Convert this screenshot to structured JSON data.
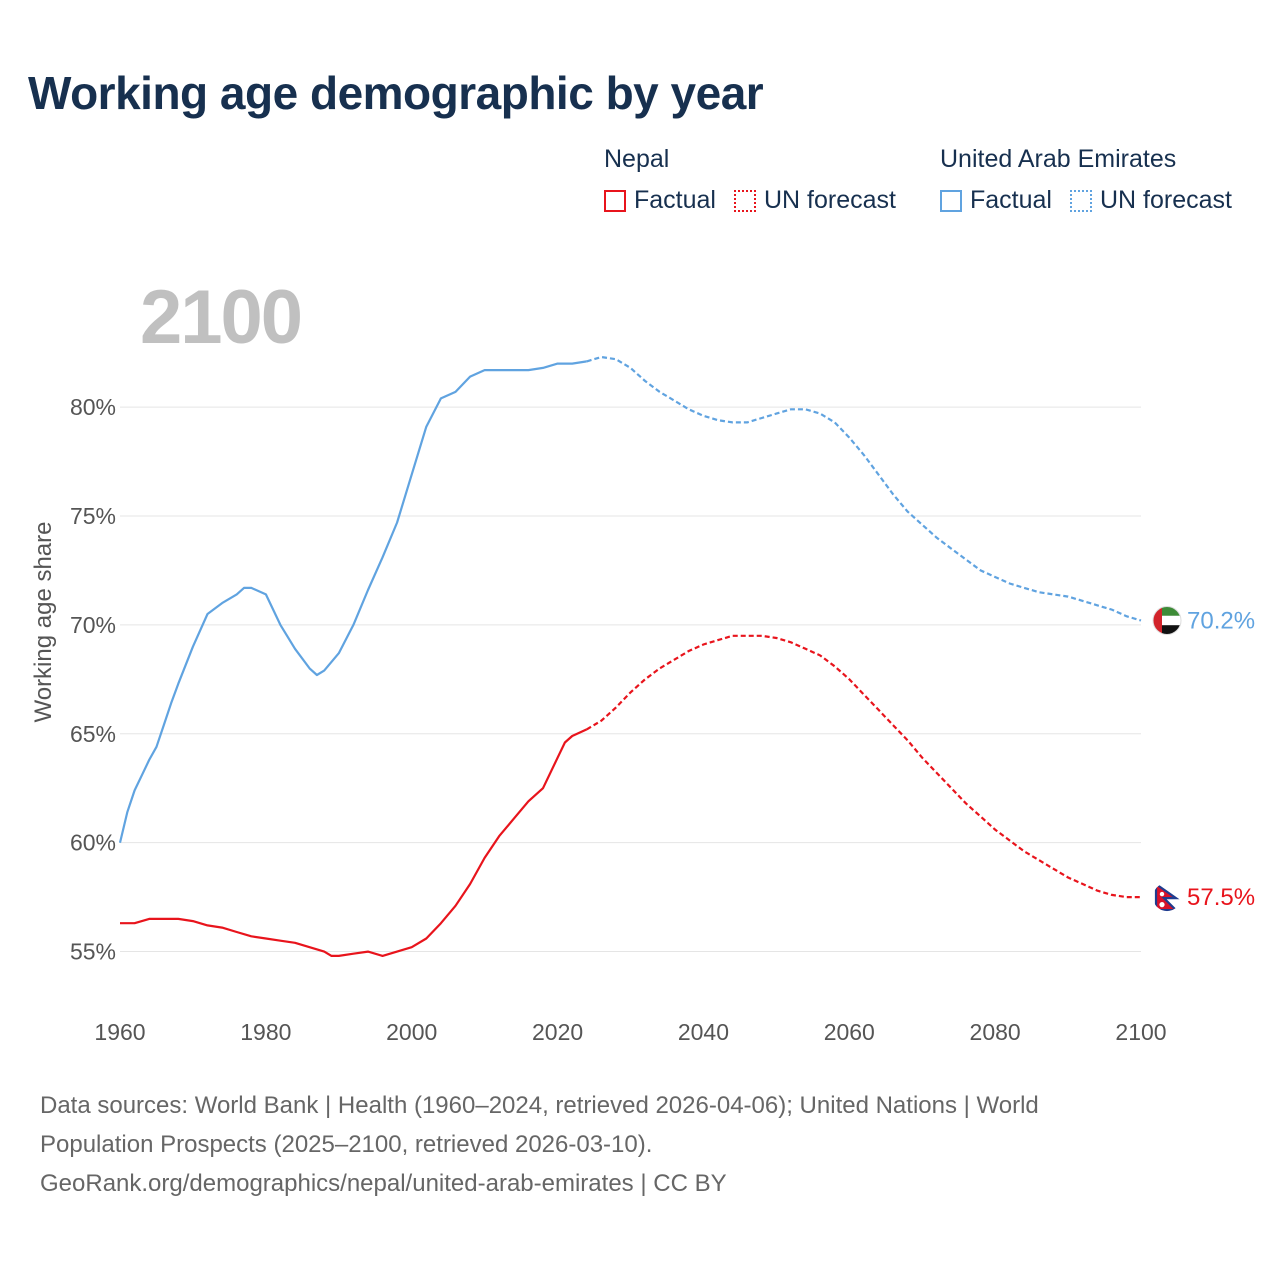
{
  "chart_data": {
    "type": "line",
    "title": "Working age demographic by year",
    "current_year_label": "2100",
    "ylabel": "Working age share",
    "xlabel": "",
    "xlim": [
      1960,
      2100
    ],
    "ylim": [
      52.5,
      84
    ],
    "x_ticks": [
      "1960",
      "1980",
      "2000",
      "2020",
      "2040",
      "2060",
      "2080",
      "2100"
    ],
    "y_ticks": [
      "55%",
      "60%",
      "65%",
      "70%",
      "75%",
      "80%"
    ],
    "y_tick_values": [
      55,
      60,
      65,
      70,
      75,
      80
    ],
    "factual_end_year": 2024,
    "legend": {
      "factual_label": "Factual",
      "forecast_label": "UN forecast"
    },
    "series": [
      {
        "name": "Nepal",
        "color": "#e8141c",
        "end_label": "57.5%",
        "flag": "nepal-flag",
        "points": [
          [
            1960,
            56.3
          ],
          [
            1962,
            56.3
          ],
          [
            1964,
            56.5
          ],
          [
            1966,
            56.5
          ],
          [
            1968,
            56.5
          ],
          [
            1970,
            56.4
          ],
          [
            1972,
            56.2
          ],
          [
            1974,
            56.1
          ],
          [
            1976,
            55.9
          ],
          [
            1978,
            55.7
          ],
          [
            1980,
            55.6
          ],
          [
            1982,
            55.5
          ],
          [
            1984,
            55.4
          ],
          [
            1986,
            55.2
          ],
          [
            1988,
            55.0
          ],
          [
            1989,
            54.8
          ],
          [
            1990,
            54.8
          ],
          [
            1992,
            54.9
          ],
          [
            1994,
            55.0
          ],
          [
            1996,
            54.8
          ],
          [
            1998,
            55.0
          ],
          [
            2000,
            55.2
          ],
          [
            2002,
            55.6
          ],
          [
            2004,
            56.3
          ],
          [
            2006,
            57.1
          ],
          [
            2008,
            58.1
          ],
          [
            2010,
            59.3
          ],
          [
            2012,
            60.3
          ],
          [
            2014,
            61.1
          ],
          [
            2016,
            61.9
          ],
          [
            2018,
            62.5
          ],
          [
            2020,
            63.9
          ],
          [
            2021,
            64.6
          ],
          [
            2022,
            64.9
          ],
          [
            2024,
            65.2
          ],
          [
            2026,
            65.6
          ],
          [
            2028,
            66.2
          ],
          [
            2030,
            66.9
          ],
          [
            2032,
            67.5
          ],
          [
            2034,
            68.0
          ],
          [
            2036,
            68.4
          ],
          [
            2038,
            68.8
          ],
          [
            2040,
            69.1
          ],
          [
            2042,
            69.3
          ],
          [
            2044,
            69.5
          ],
          [
            2046,
            69.5
          ],
          [
            2048,
            69.5
          ],
          [
            2050,
            69.4
          ],
          [
            2052,
            69.2
          ],
          [
            2054,
            68.9
          ],
          [
            2056,
            68.6
          ],
          [
            2058,
            68.1
          ],
          [
            2060,
            67.5
          ],
          [
            2062,
            66.8
          ],
          [
            2064,
            66.1
          ],
          [
            2066,
            65.4
          ],
          [
            2068,
            64.7
          ],
          [
            2070,
            63.9
          ],
          [
            2072,
            63.2
          ],
          [
            2074,
            62.5
          ],
          [
            2076,
            61.8
          ],
          [
            2078,
            61.2
          ],
          [
            2080,
            60.6
          ],
          [
            2082,
            60.1
          ],
          [
            2084,
            59.6
          ],
          [
            2086,
            59.2
          ],
          [
            2088,
            58.8
          ],
          [
            2090,
            58.4
          ],
          [
            2092,
            58.1
          ],
          [
            2094,
            57.8
          ],
          [
            2096,
            57.6
          ],
          [
            2098,
            57.5
          ],
          [
            2100,
            57.5
          ]
        ]
      },
      {
        "name": "United Arab Emirates",
        "color": "#60a3e0",
        "end_label": "70.2%",
        "flag": "uae-flag",
        "points": [
          [
            1960,
            60.0
          ],
          [
            1961,
            61.4
          ],
          [
            1962,
            62.4
          ],
          [
            1963,
            63.1
          ],
          [
            1964,
            63.8
          ],
          [
            1965,
            64.4
          ],
          [
            1966,
            65.4
          ],
          [
            1967,
            66.4
          ],
          [
            1968,
            67.3
          ],
          [
            1970,
            69.0
          ],
          [
            1972,
            70.5
          ],
          [
            1974,
            71.0
          ],
          [
            1976,
            71.4
          ],
          [
            1977,
            71.7
          ],
          [
            1978,
            71.7
          ],
          [
            1980,
            71.4
          ],
          [
            1982,
            70.0
          ],
          [
            1984,
            68.9
          ],
          [
            1986,
            68.0
          ],
          [
            1987,
            67.7
          ],
          [
            1988,
            67.9
          ],
          [
            1990,
            68.7
          ],
          [
            1992,
            70.0
          ],
          [
            1994,
            71.6
          ],
          [
            1996,
            73.1
          ],
          [
            1998,
            74.7
          ],
          [
            2000,
            76.9
          ],
          [
            2002,
            79.1
          ],
          [
            2004,
            80.4
          ],
          [
            2006,
            80.7
          ],
          [
            2008,
            81.4
          ],
          [
            2010,
            81.7
          ],
          [
            2012,
            81.7
          ],
          [
            2014,
            81.7
          ],
          [
            2016,
            81.7
          ],
          [
            2018,
            81.8
          ],
          [
            2020,
            82.0
          ],
          [
            2022,
            82.0
          ],
          [
            2024,
            82.1
          ],
          [
            2026,
            82.3
          ],
          [
            2028,
            82.2
          ],
          [
            2030,
            81.8
          ],
          [
            2032,
            81.2
          ],
          [
            2034,
            80.7
          ],
          [
            2036,
            80.3
          ],
          [
            2038,
            79.9
          ],
          [
            2040,
            79.6
          ],
          [
            2042,
            79.4
          ],
          [
            2044,
            79.3
          ],
          [
            2046,
            79.3
          ],
          [
            2048,
            79.5
          ],
          [
            2050,
            79.7
          ],
          [
            2052,
            79.9
          ],
          [
            2054,
            79.9
          ],
          [
            2056,
            79.7
          ],
          [
            2058,
            79.3
          ],
          [
            2060,
            78.6
          ],
          [
            2062,
            77.8
          ],
          [
            2064,
            76.9
          ],
          [
            2066,
            76.0
          ],
          [
            2068,
            75.2
          ],
          [
            2070,
            74.6
          ],
          [
            2072,
            74.0
          ],
          [
            2074,
            73.5
          ],
          [
            2076,
            73.0
          ],
          [
            2078,
            72.5
          ],
          [
            2080,
            72.2
          ],
          [
            2082,
            71.9
          ],
          [
            2084,
            71.7
          ],
          [
            2086,
            71.5
          ],
          [
            2088,
            71.4
          ],
          [
            2090,
            71.3
          ],
          [
            2092,
            71.1
          ],
          [
            2094,
            70.9
          ],
          [
            2096,
            70.7
          ],
          [
            2098,
            70.4
          ],
          [
            2100,
            70.2
          ]
        ]
      }
    ]
  },
  "colors": {
    "title": "#17304f",
    "axis_text": "#555555",
    "grid": "#e5e5e5",
    "nepal": "#e8141c",
    "uae": "#60a3e0"
  },
  "footer": {
    "line1": "Data sources: World Bank | Health (1960–2024, retrieved 2026-04-06); United Nations | World",
    "line2": "Population Prospects (2025–2100, retrieved 2026-03-10).",
    "line3": "GeoRank.org/demographics/nepal/united-arab-emirates | CC BY"
  }
}
